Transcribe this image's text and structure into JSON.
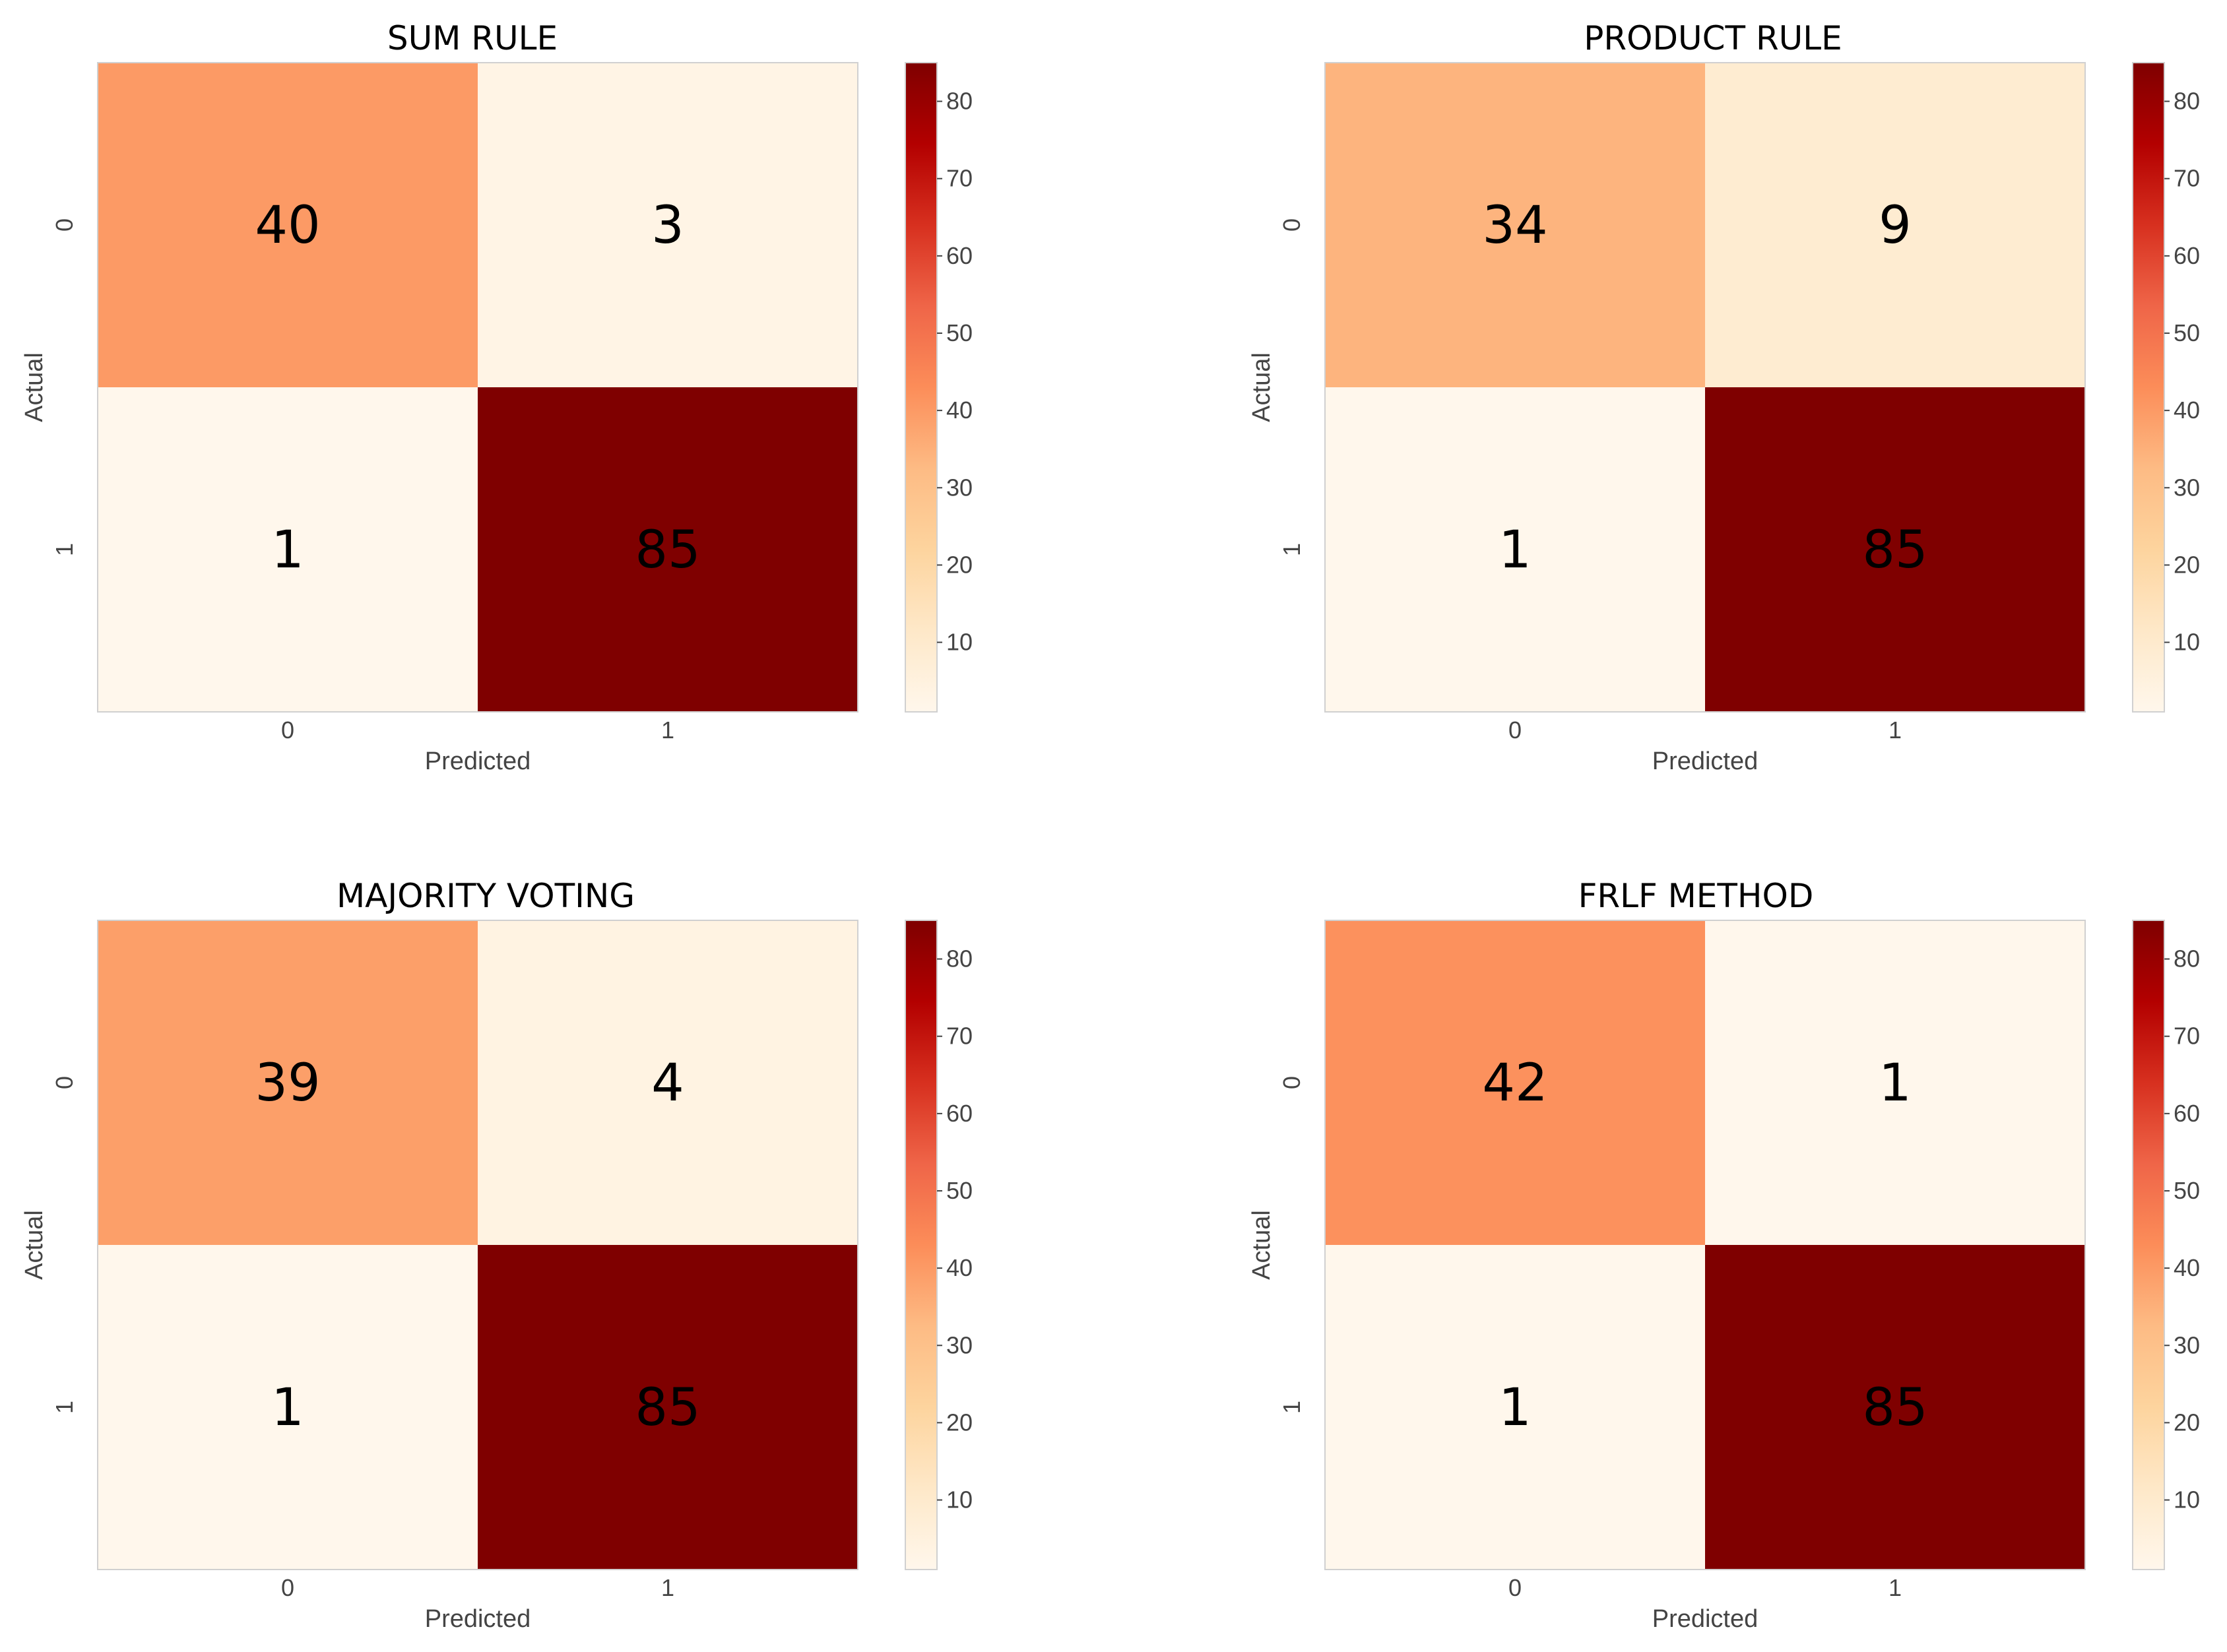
{
  "figure": {
    "colormap": "OrRd",
    "colors": {
      "low": "#fff7ec",
      "high": "#7f0000",
      "axis_text": "#444444",
      "title_text": "#000000",
      "frame": "#d0d0d0"
    }
  },
  "chart_data": [
    {
      "type": "heatmap",
      "title": "SUM RULE",
      "xlabel": "Predicted",
      "ylabel": "Actual",
      "x_categories": [
        "0",
        "1"
      ],
      "y_categories": [
        "0",
        "1"
      ],
      "matrix": [
        [
          40,
          3
        ],
        [
          1,
          85
        ]
      ],
      "colorbar": {
        "vmin": 1,
        "vmax": 85,
        "ticks": [
          10,
          20,
          30,
          40,
          50,
          60,
          70,
          80
        ]
      }
    },
    {
      "type": "heatmap",
      "title": "PRODUCT RULE",
      "xlabel": "Predicted",
      "ylabel": "Actual",
      "x_categories": [
        "0",
        "1"
      ],
      "y_categories": [
        "0",
        "1"
      ],
      "matrix": [
        [
          34,
          9
        ],
        [
          1,
          85
        ]
      ],
      "colorbar": {
        "vmin": 1,
        "vmax": 85,
        "ticks": [
          10,
          20,
          30,
          40,
          50,
          60,
          70,
          80
        ]
      }
    },
    {
      "type": "heatmap",
      "title": "MAJORITY VOTING",
      "xlabel": "Predicted",
      "ylabel": "Actual",
      "x_categories": [
        "0",
        "1"
      ],
      "y_categories": [
        "0",
        "1"
      ],
      "matrix": [
        [
          39,
          4
        ],
        [
          1,
          85
        ]
      ],
      "colorbar": {
        "vmin": 1,
        "vmax": 85,
        "ticks": [
          10,
          20,
          30,
          40,
          50,
          60,
          70,
          80
        ]
      }
    },
    {
      "type": "heatmap",
      "title": "FRLF METHOD",
      "xlabel": "Predicted",
      "ylabel": "Actual",
      "x_categories": [
        "0",
        "1"
      ],
      "y_categories": [
        "0",
        "1"
      ],
      "matrix": [
        [
          42,
          1
        ],
        [
          1,
          85
        ]
      ],
      "colorbar": {
        "vmin": 1,
        "vmax": 85,
        "ticks": [
          10,
          20,
          30,
          40,
          50,
          60,
          70,
          80
        ]
      }
    }
  ]
}
